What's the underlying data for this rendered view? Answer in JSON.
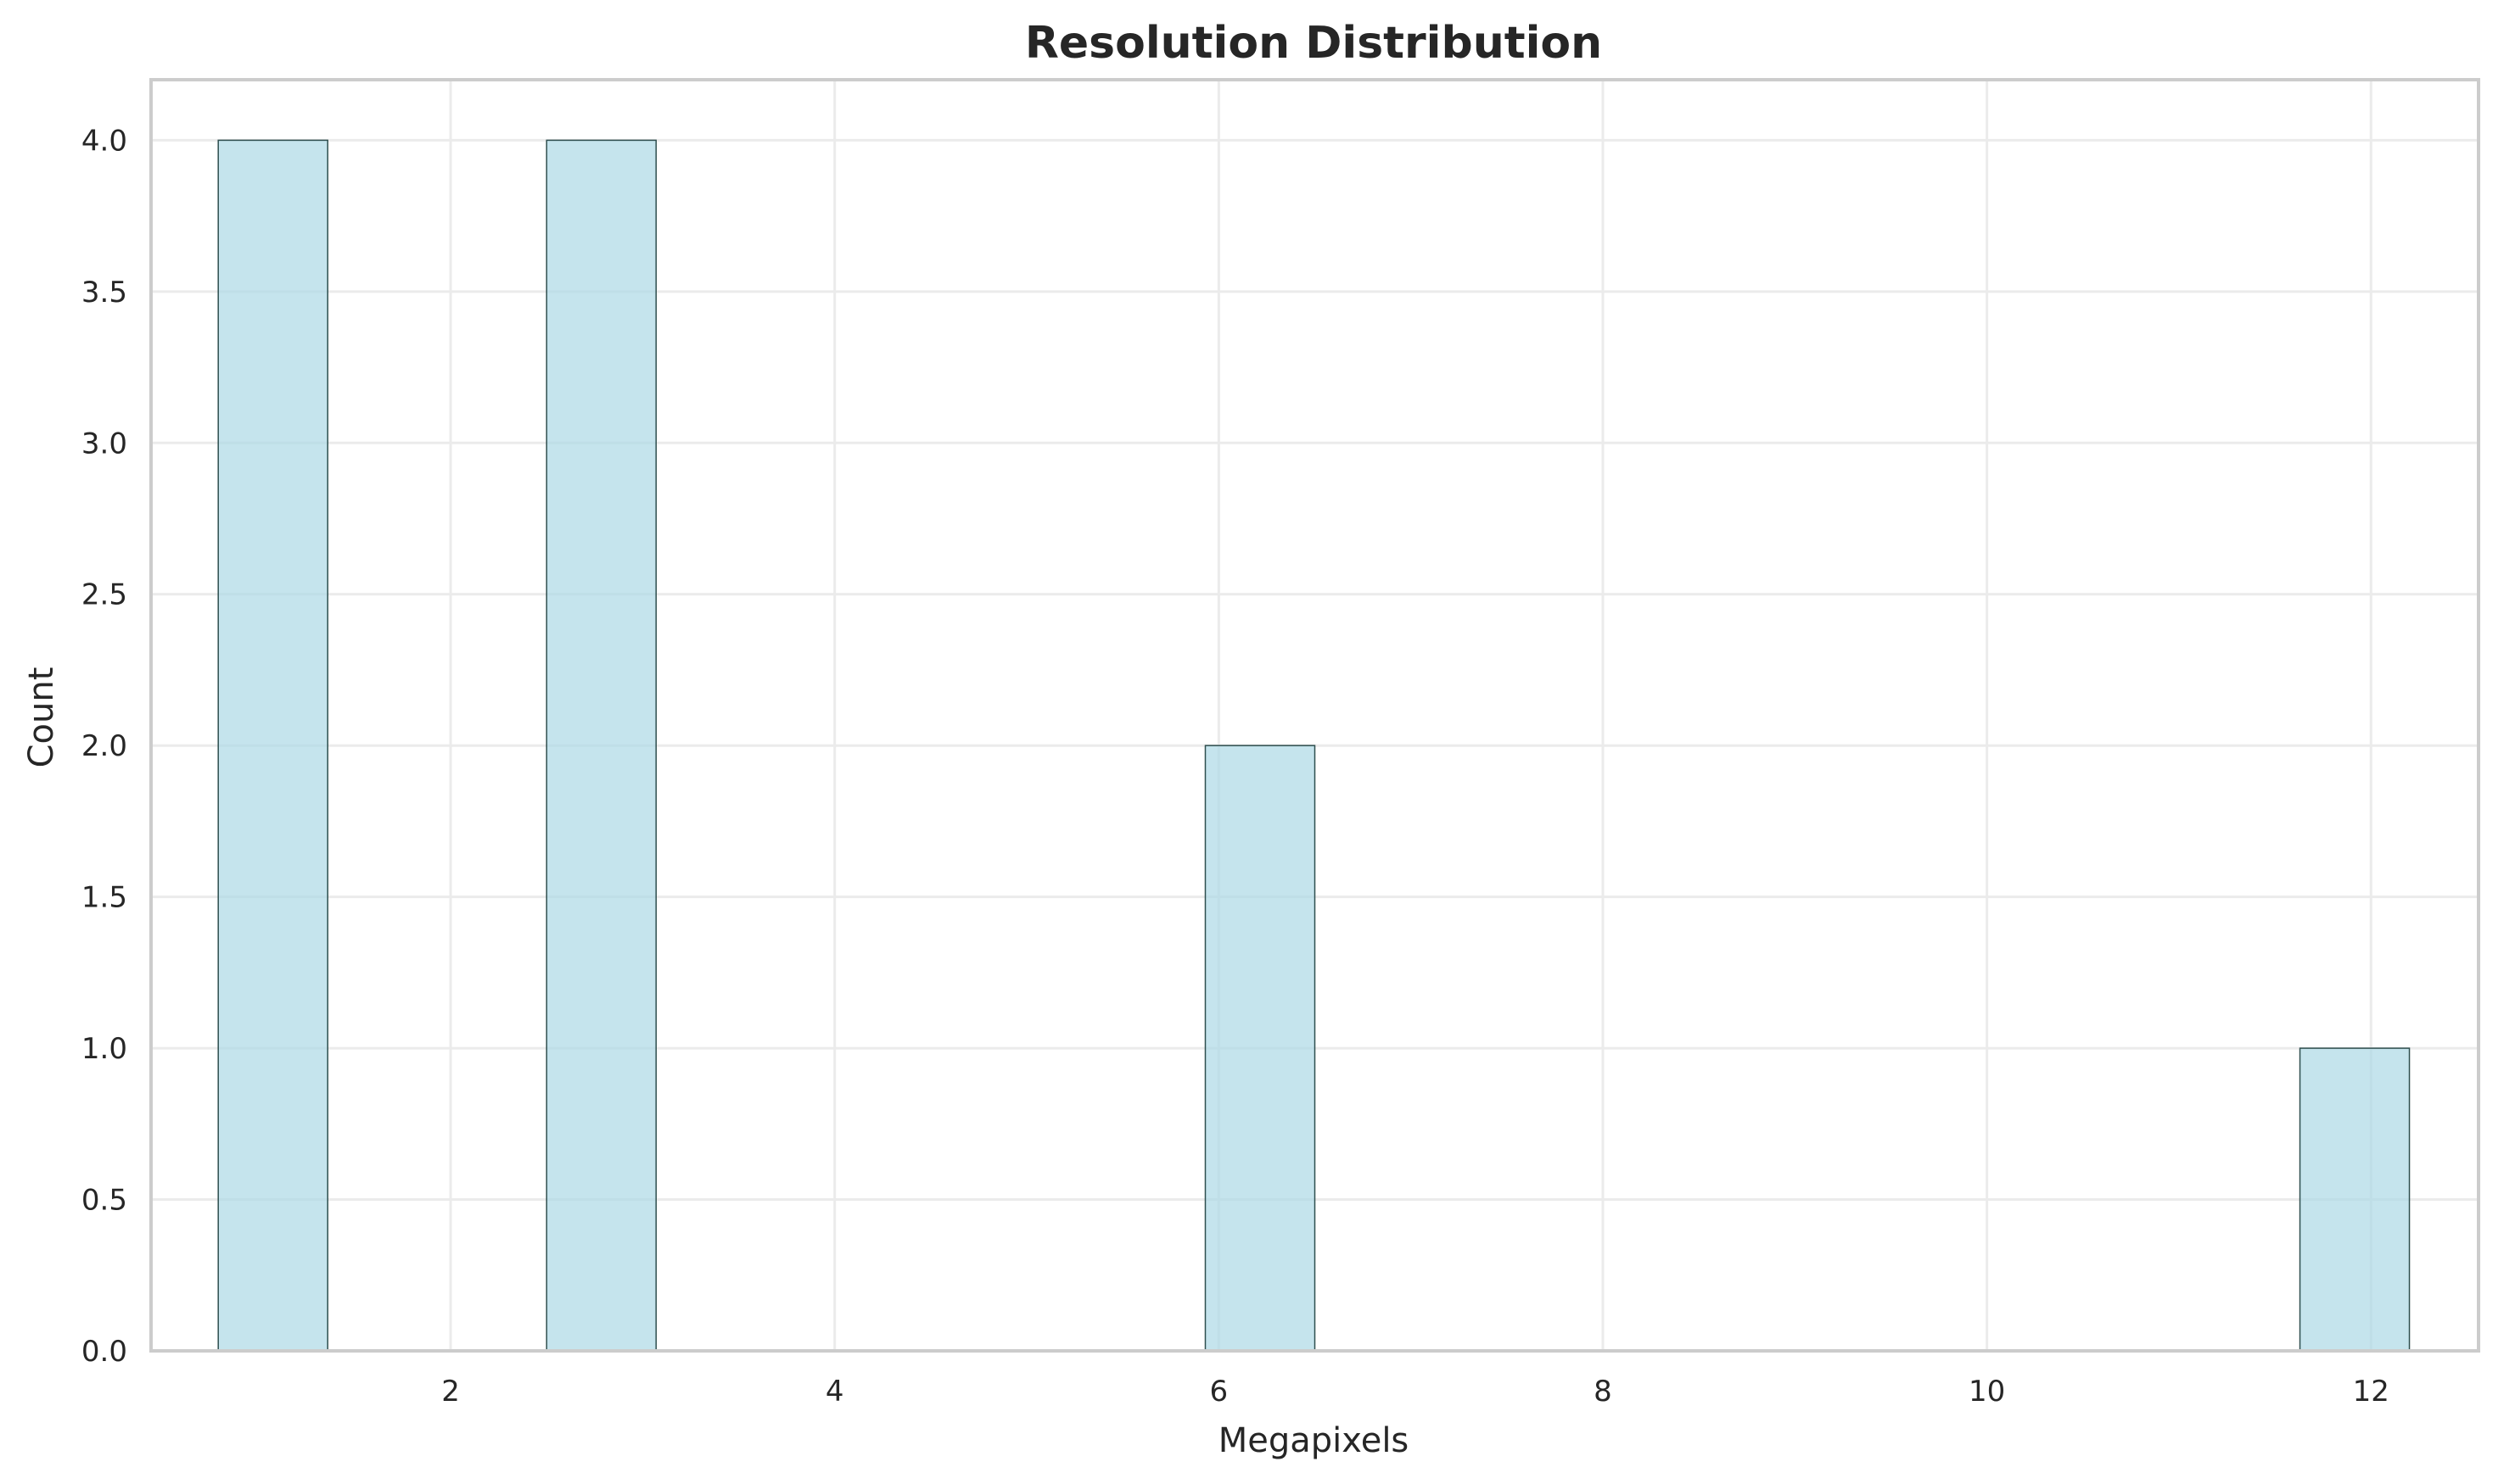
{
  "chart_data": {
    "type": "bar",
    "title": "Resolution Distribution",
    "xlabel": "Megapixels",
    "ylabel": "Count",
    "xlim": [
      0.44,
      12.56
    ],
    "ylim": [
      0,
      4.2
    ],
    "xticks": [
      2,
      4,
      6,
      8,
      10,
      12
    ],
    "yticks": [
      0.0,
      0.5,
      1.0,
      1.5,
      2.0,
      2.5,
      3.0,
      3.5,
      4.0
    ],
    "xtick_labels": [
      "2",
      "4",
      "6",
      "8",
      "10",
      "12"
    ],
    "ytick_labels": [
      "0.0",
      "0.5",
      "1.0",
      "1.5",
      "2.0",
      "2.5",
      "3.0",
      "3.5",
      "4.0"
    ],
    "bins": [
      {
        "x0": 0.79,
        "x1": 1.36,
        "count": 4
      },
      {
        "x0": 2.5,
        "x1": 3.07,
        "count": 4
      },
      {
        "x0": 5.93,
        "x1": 6.5,
        "count": 2
      },
      {
        "x0": 11.63,
        "x1": 12.2,
        "count": 1
      }
    ],
    "grid": true,
    "bar_color": "#add8e6",
    "bar_edge_color": "#2f4f4f"
  }
}
